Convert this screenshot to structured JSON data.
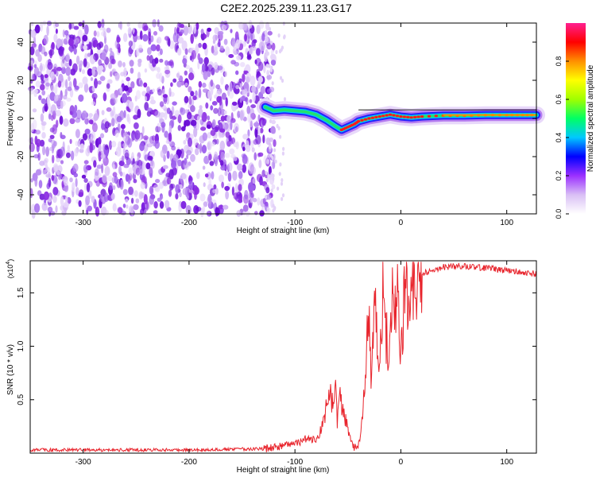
{
  "title": "C2E2.2025.239.11.23.G17",
  "chart_data": [
    {
      "type": "heatmap",
      "id": "spectrogram",
      "xlabel": "Height of straight line (km)",
      "ylabel": "Frequency (Hz)",
      "xlim": [
        -350,
        128
      ],
      "ylim": [
        -50,
        50
      ],
      "xticks": [
        -300,
        -200,
        -100,
        0,
        100
      ],
      "xtick_labels": [
        "-300",
        "-200",
        "-100",
        "0",
        "100"
      ],
      "yticks": [
        -40,
        -20,
        0,
        20,
        40
      ],
      "ytick_labels": [
        "-40",
        "-20",
        "0",
        "20",
        "40"
      ],
      "noise_region_x": [
        -350,
        -128
      ],
      "signal_track": {
        "x": [
          -128,
          -120,
          -110,
          -100,
          -90,
          -80,
          -70,
          -62,
          -56,
          -50,
          -44,
          -40,
          -30,
          -20,
          -10,
          0,
          10,
          20,
          40,
          60,
          80,
          100,
          115,
          128
        ],
        "freq": [
          6,
          4,
          4.5,
          4,
          3.5,
          2,
          -1,
          -4,
          -6,
          -4.5,
          -3,
          -1.5,
          0,
          1,
          2,
          1,
          0.5,
          1,
          1.5,
          1.5,
          1.8,
          1.8,
          1.8,
          1.8
        ]
      },
      "colorbar": {
        "label": "Normalized spectral amplitude",
        "range": [
          0,
          1
        ],
        "ticks": [
          0.0,
          0.2,
          0.4,
          0.6,
          0.8
        ],
        "tick_labels": [
          "0.0",
          "0.2",
          "0.4",
          "0.6",
          "0.8"
        ],
        "colors": [
          "#ffffff",
          "#d9bff5",
          "#9b30ff",
          "#0000ff",
          "#00c8ff",
          "#00ff64",
          "#a0ff00",
          "#ffff00",
          "#ff9000",
          "#ff0000",
          "#ff2090"
        ]
      }
    },
    {
      "type": "line",
      "id": "snr",
      "xlabel": "Height of straight line (km)",
      "ylabel": "SNR (10 * v/v)",
      "yscale_note": "(x10",
      "yscale_exp": "4",
      "xlim": [
        -350,
        128
      ],
      "ylim": [
        0,
        1.8
      ],
      "xticks": [
        -300,
        -200,
        -100,
        0,
        100
      ],
      "xtick_labels": [
        "-300",
        "-200",
        "-100",
        "0",
        "100"
      ],
      "yticks": [
        0.5,
        1.0,
        1.5
      ],
      "ytick_labels": [
        "0.5",
        "1.0",
        "1.5"
      ],
      "color": "#e8242c",
      "series": [
        {
          "name": "SNR",
          "x": [
            -350,
            -300,
            -200,
            -130,
            -115,
            -100,
            -90,
            -80,
            -72,
            -68,
            -65,
            -62,
            -60,
            -57,
            -55,
            -50,
            -45,
            -42,
            -40,
            -38,
            -35,
            -32,
            -30,
            -28,
            -25,
            -22,
            -20,
            -17,
            -15,
            -12,
            -10,
            -8,
            -5,
            -3,
            0,
            3,
            5,
            10,
            15,
            20,
            25,
            30,
            40,
            50,
            60,
            70,
            80,
            90,
            100,
            110,
            115,
            128
          ],
          "values": [
            0.03,
            0.03,
            0.03,
            0.04,
            0.06,
            0.09,
            0.13,
            0.12,
            0.3,
            0.62,
            0.45,
            0.72,
            0.28,
            0.55,
            0.4,
            0.22,
            0.06,
            0.05,
            0.07,
            0.2,
            0.55,
            1.1,
            1.4,
            0.75,
            1.5,
            0.9,
            0.8,
            1.55,
            1.2,
            0.95,
            1.3,
            1.6,
            1.35,
            1.55,
            0.9,
            1.4,
            1.5,
            1.55,
            1.62,
            1.66,
            1.7,
            1.72,
            1.74,
            1.75,
            1.75,
            1.74,
            1.73,
            1.72,
            1.71,
            1.7,
            1.68,
            1.68
          ]
        }
      ]
    }
  ]
}
